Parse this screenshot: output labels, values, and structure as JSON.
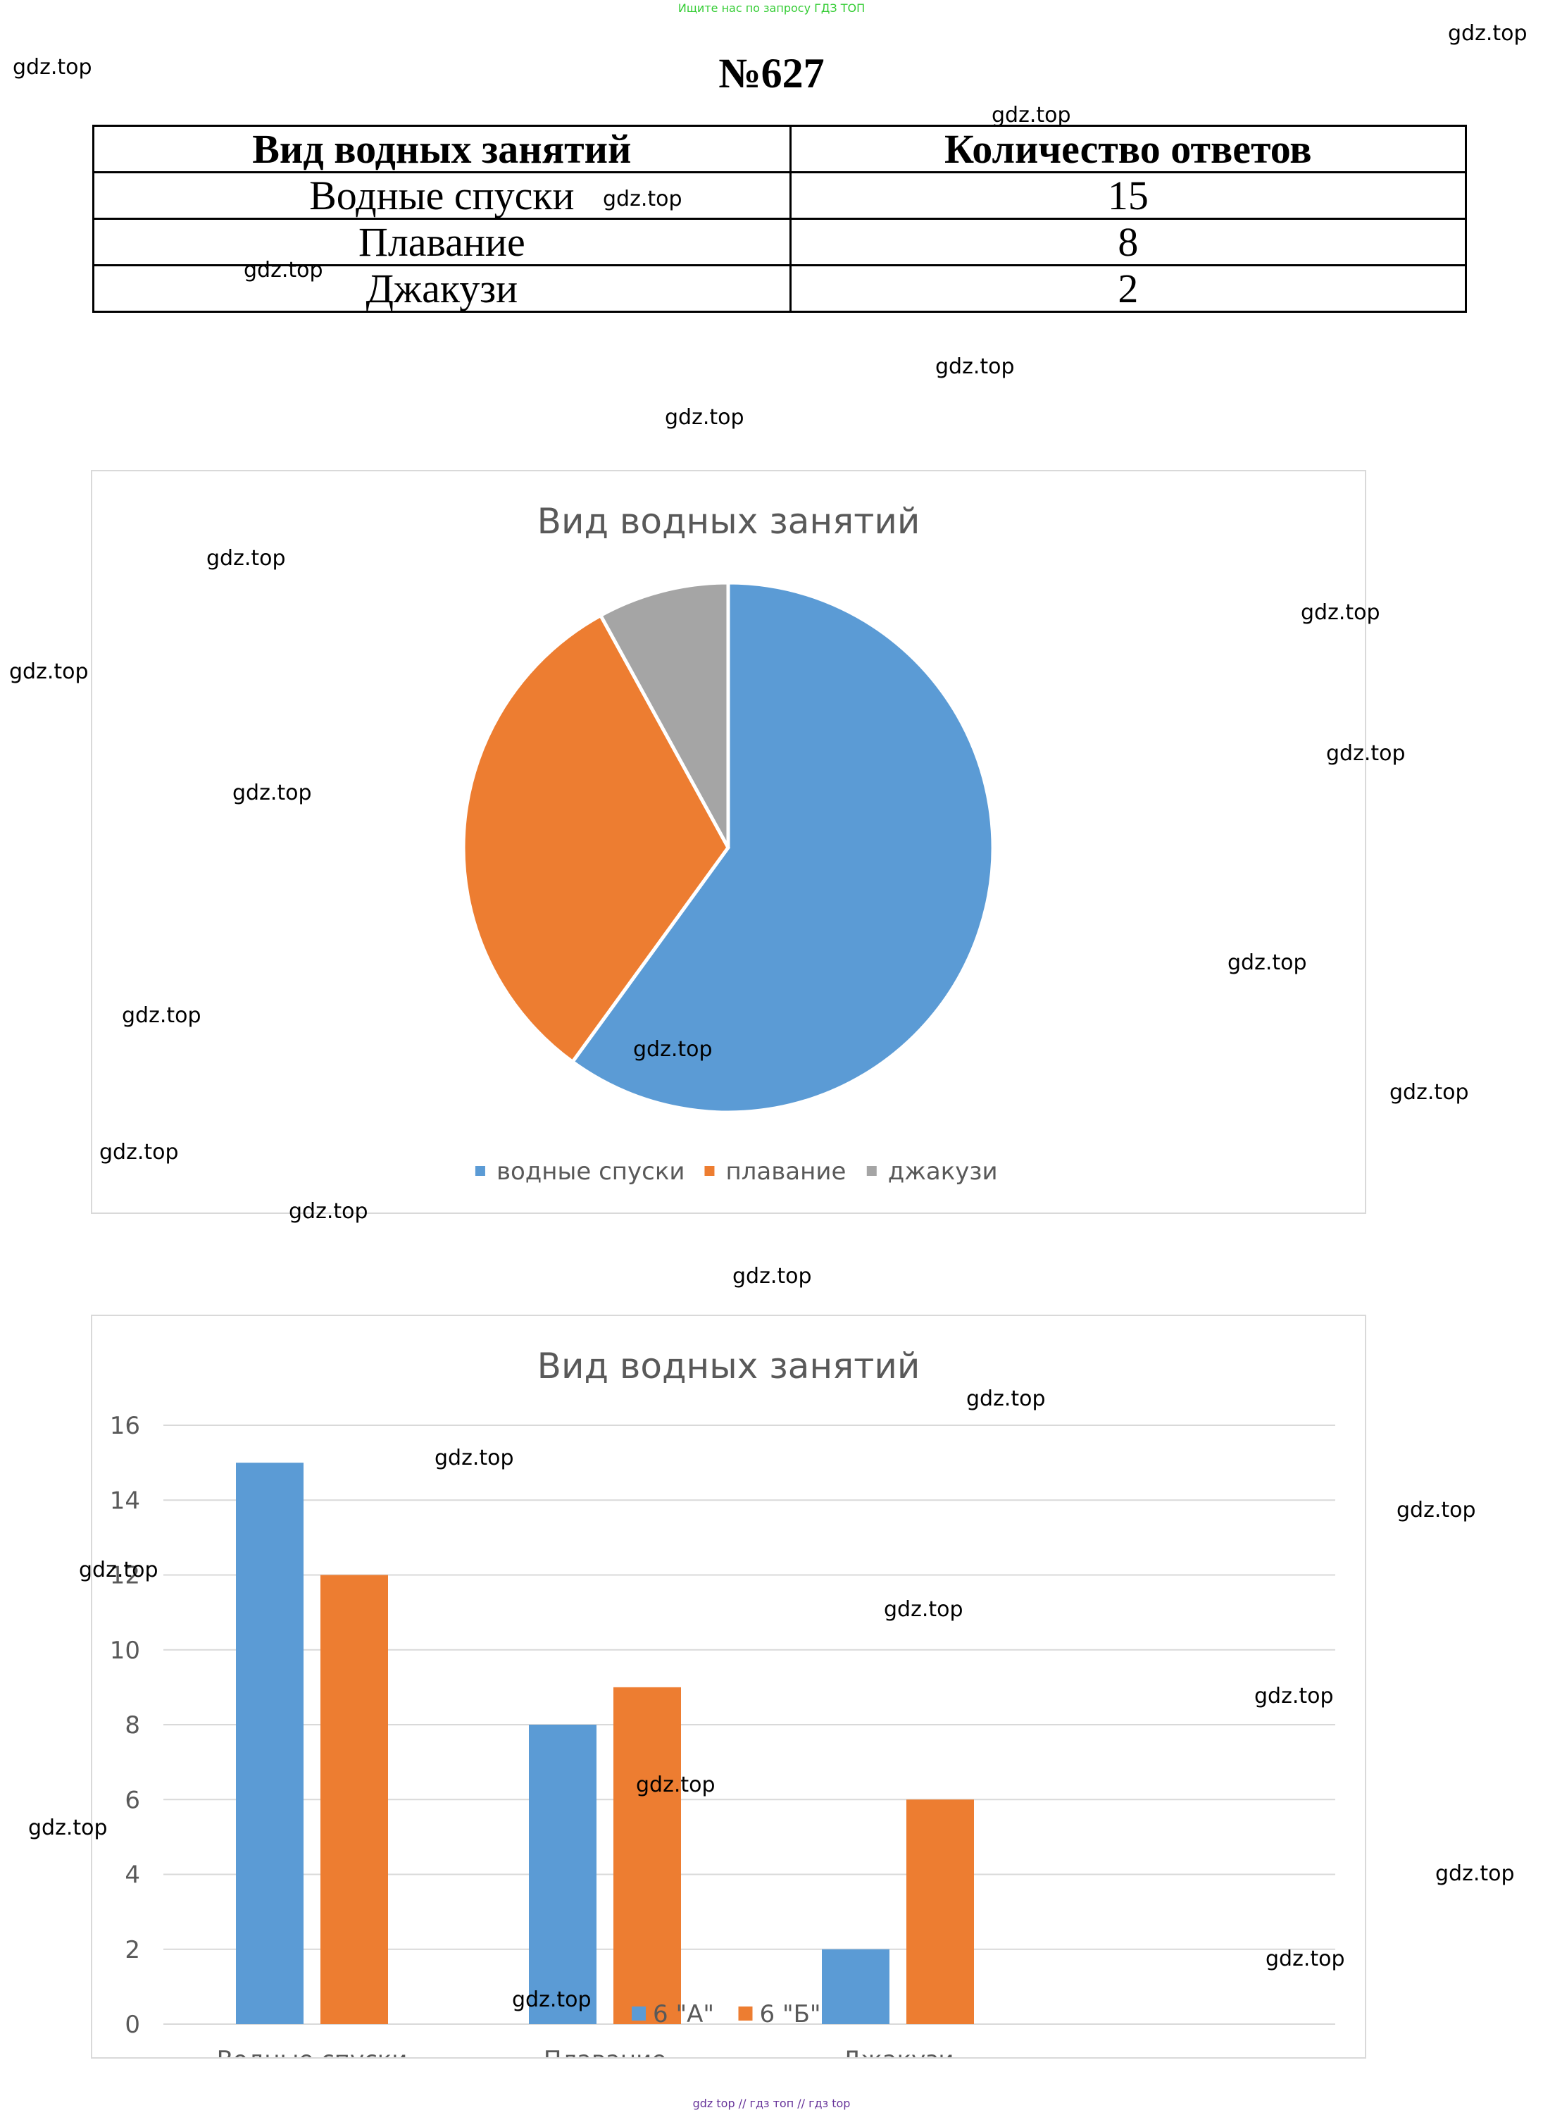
{
  "banner": "Ищите нас по запросу ГДЗ ТОП",
  "problem_number": "№627",
  "table": {
    "headers": [
      "Вид водных занятий",
      "Количество ответов"
    ],
    "rows": [
      [
        "Водные спуски",
        "15"
      ],
      [
        "Плавание",
        "8"
      ],
      [
        "Джакузи",
        "2"
      ]
    ]
  },
  "watermark": "gdz.top",
  "footer": "gdz top  //  гдз топ  //  гдз top",
  "chart_data": [
    {
      "type": "pie",
      "title": "Вид водных занятий",
      "categories": [
        "водные спуски",
        "плавание",
        "джакузи"
      ],
      "values": [
        15,
        8,
        2
      ],
      "colors": [
        "#5b9bd5",
        "#ed7d31",
        "#a5a5a5"
      ],
      "legend": "bottom"
    },
    {
      "type": "bar",
      "title": "Вид водных занятий",
      "categories": [
        "Водные спуски",
        "Плавание",
        "Джакузи"
      ],
      "series": [
        {
          "name": "6 \"А\"",
          "values": [
            15,
            8,
            2
          ],
          "color": "#5b9bd5"
        },
        {
          "name": "6 \"Б\"",
          "values": [
            12,
            9,
            6
          ],
          "color": "#ed7d31"
        }
      ],
      "ylim": [
        0,
        16
      ],
      "yticks": [
        0,
        2,
        4,
        6,
        8,
        10,
        12,
        14,
        16
      ],
      "grid": true,
      "legend": "bottom"
    }
  ]
}
